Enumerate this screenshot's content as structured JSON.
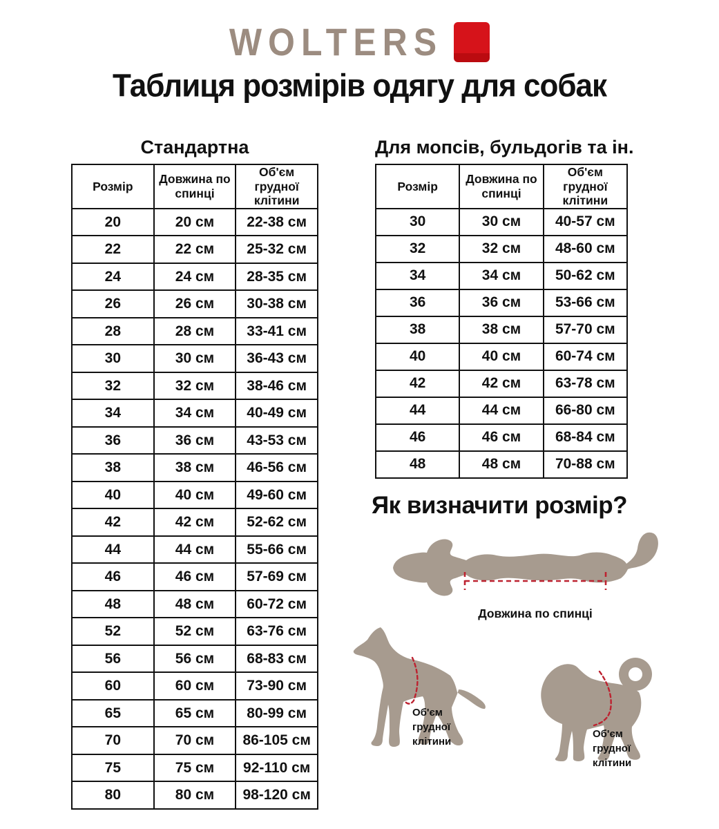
{
  "brand": {
    "logo_text": "WOLTERS"
  },
  "page_title": "Таблиця розмірів одягу для собак",
  "tables": {
    "standard": {
      "title": "Стандартна",
      "headers": [
        "Розмір",
        "Довжина по спинці",
        "Об'єм грудної клітини"
      ],
      "rows": [
        [
          "20",
          "20 см",
          "22-38 см"
        ],
        [
          "22",
          "22 см",
          "25-32 см"
        ],
        [
          "24",
          "24 см",
          "28-35 см"
        ],
        [
          "26",
          "26 см",
          "30-38 см"
        ],
        [
          "28",
          "28 см",
          "33-41 см"
        ],
        [
          "30",
          "30 см",
          "36-43 см"
        ],
        [
          "32",
          "32 см",
          "38-46 см"
        ],
        [
          "34",
          "34 см",
          "40-49 см"
        ],
        [
          "36",
          "36 см",
          "43-53 см"
        ],
        [
          "38",
          "38 см",
          "46-56 см"
        ],
        [
          "40",
          "40 см",
          "49-60 см"
        ],
        [
          "42",
          "42 см",
          "52-62 см"
        ],
        [
          "44",
          "44 см",
          "55-66 см"
        ],
        [
          "46",
          "46 см",
          "57-69 см"
        ],
        [
          "48",
          "48 см",
          "60-72 см"
        ],
        [
          "52",
          "52 см",
          "63-76 см"
        ],
        [
          "56",
          "56 см",
          "68-83 см"
        ],
        [
          "60",
          "60 см",
          "73-90 см"
        ],
        [
          "65",
          "65 см",
          "80-99 см"
        ],
        [
          "70",
          "70 см",
          "86-105 см"
        ],
        [
          "75",
          "75 см",
          "92-110 см"
        ],
        [
          "80",
          "80 см",
          "98-120 см"
        ]
      ]
    },
    "pugs": {
      "title": "Для мопсів, бульдогів та ін.",
      "headers": [
        "Розмір",
        "Довжина по спинці",
        "Об'єм грудної клітини"
      ],
      "rows": [
        [
          "30",
          "30 см",
          "40-57 см"
        ],
        [
          "32",
          "32 см",
          "48-60 см"
        ],
        [
          "34",
          "34 см",
          "50-62 см"
        ],
        [
          "36",
          "36 см",
          "53-66 см"
        ],
        [
          "38",
          "38 см",
          "57-70 см"
        ],
        [
          "40",
          "40 см",
          "60-74 см"
        ],
        [
          "42",
          "42 см",
          "63-78 см"
        ],
        [
          "44",
          "44 см",
          "66-80 см"
        ],
        [
          "46",
          "46 см",
          "68-84 см"
        ],
        [
          "48",
          "48 см",
          "70-88 см"
        ]
      ]
    }
  },
  "size_guide": {
    "title": "Як визначити розмір?",
    "back_length_label": "Довжина по спинці",
    "chest_label": "Об'єм\nгрудної\nклітини"
  },
  "colors": {
    "brand_red": "#d6131a",
    "logo_taupe": "#9c8c80",
    "silhouette_taupe": "#a79b8f",
    "measure_red": "#bd2230",
    "text_black": "#111111"
  }
}
